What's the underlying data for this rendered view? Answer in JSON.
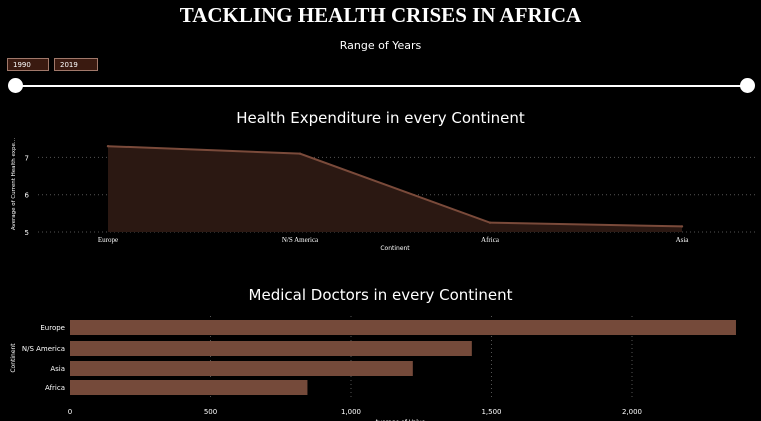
{
  "header": {
    "title": "TACKLING HEALTH CRISES IN AFRICA"
  },
  "range": {
    "label": "Range of Years",
    "start": "1990",
    "end": "2019"
  },
  "colors": {
    "area_fill": "#2b1812",
    "area_line": "#7a4a3a",
    "bar_fill": "#754a3a",
    "gridline": "#555555"
  },
  "chart_data": [
    {
      "type": "area",
      "title": "Health Expenditure in every Continent",
      "xlabel": "Continent",
      "ylabel": "Average of Current Health expe...",
      "categories": [
        "Europe",
        "N/S America",
        "Africa",
        "Asia"
      ],
      "values": [
        7.3,
        7.1,
        5.25,
        5.15
      ],
      "ylim": [
        5,
        7.6
      ],
      "yticks": [
        "5",
        "6",
        "7"
      ],
      "grid": true
    },
    {
      "type": "bar",
      "orientation": "horizontal",
      "title": "Medical Doctors in every Continent",
      "xlabel": "Average of Value",
      "ylabel": "Continent",
      "categories": [
        "Europe",
        "N/S America",
        "Asia",
        "Africa"
      ],
      "values": [
        2370,
        1430,
        1220,
        845
      ],
      "xlim": [
        0,
        2300
      ],
      "xticks": [
        "0",
        "500",
        "1,000",
        "1,500",
        "2,000"
      ],
      "grid": true
    }
  ]
}
